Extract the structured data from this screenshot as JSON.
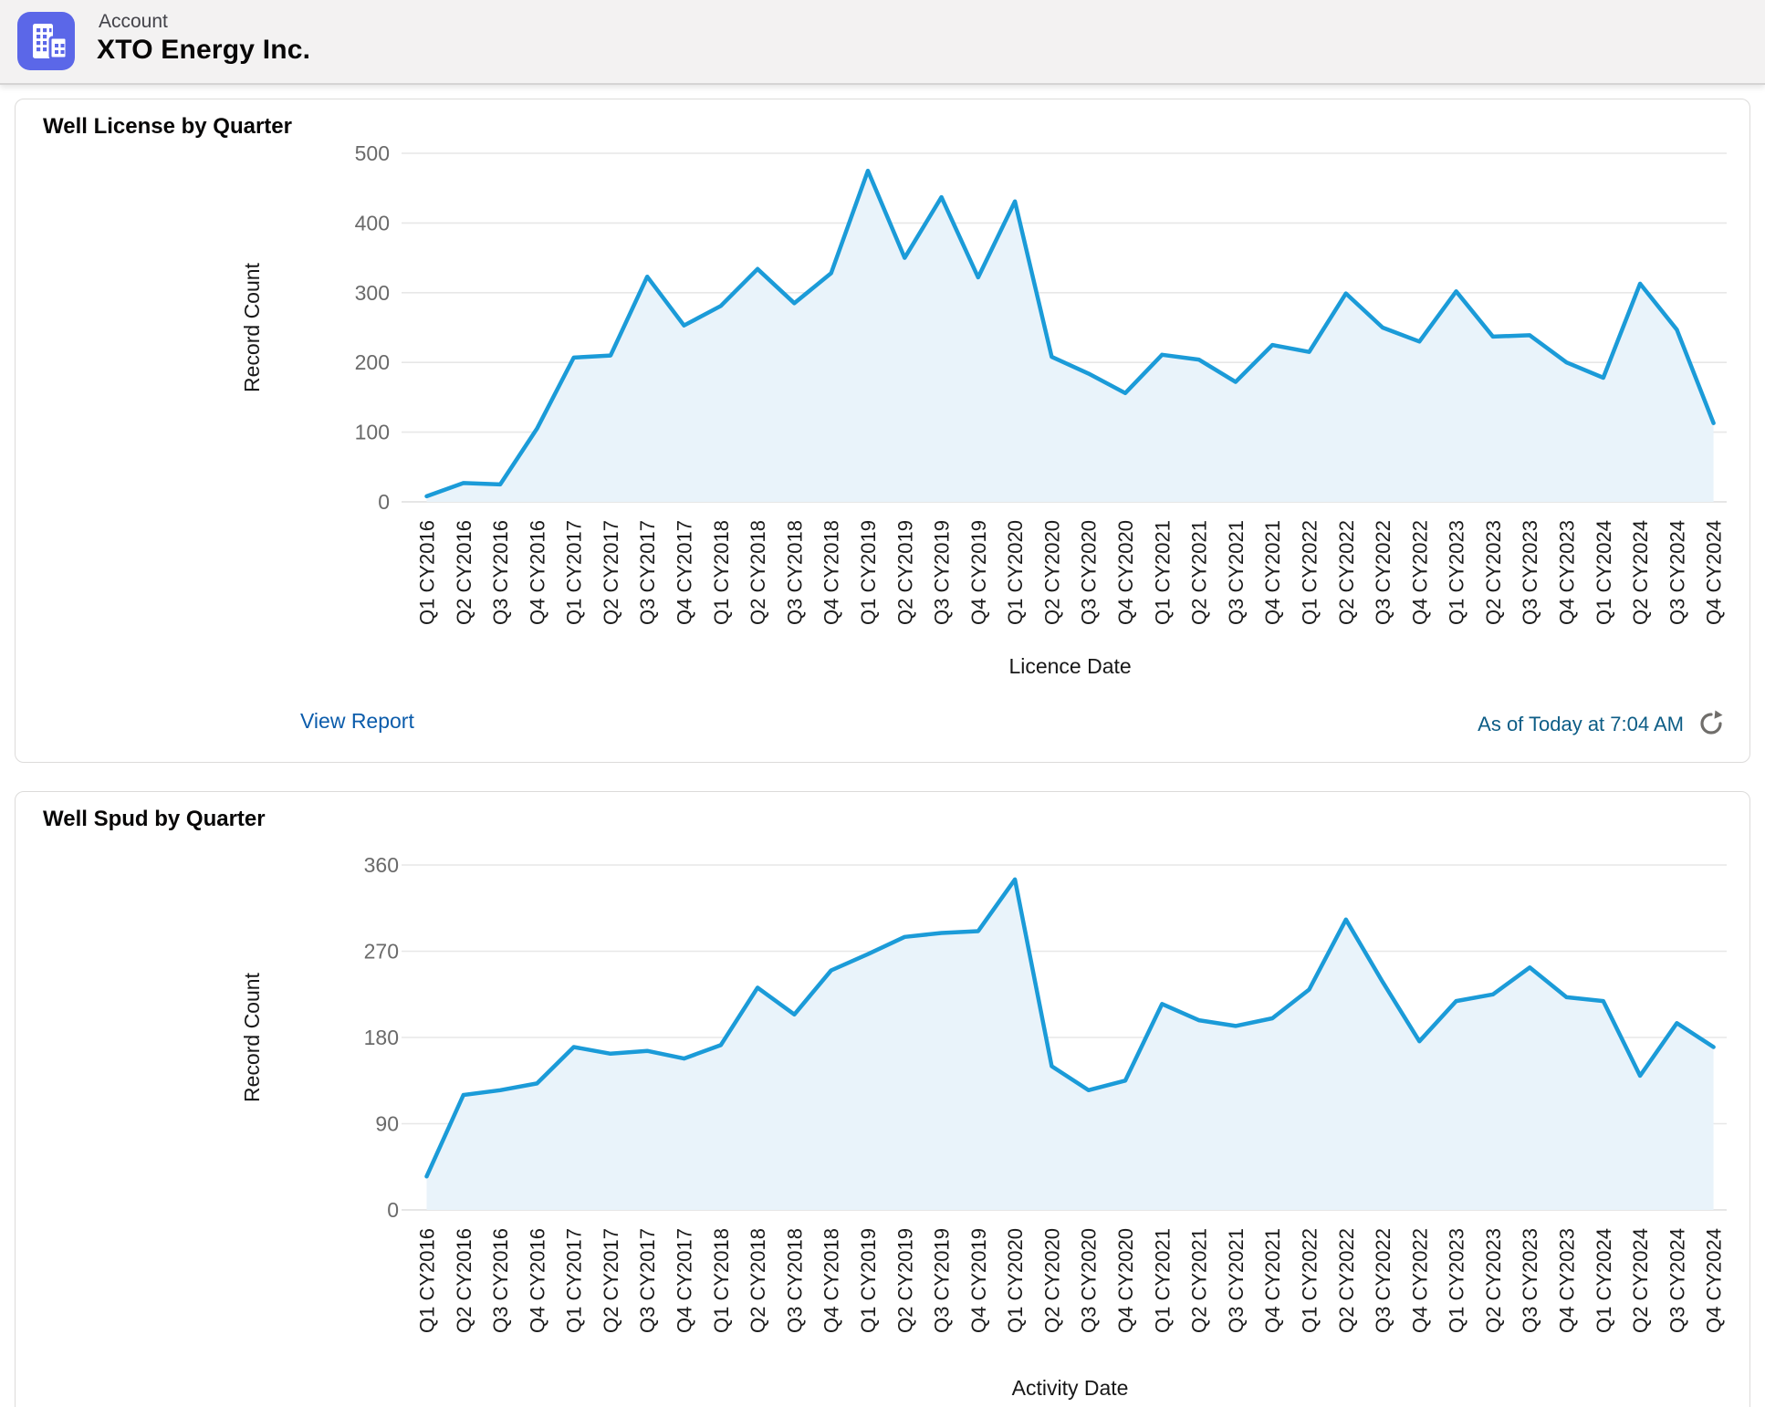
{
  "header": {
    "entity_label": "Account",
    "account_name": "XTO Energy Inc.",
    "icon": "account-building-icon"
  },
  "cards": [
    {
      "title": "Well License by Quarter",
      "footer_link": "View Report",
      "as_of_text": "As of Today at 7:04 AM",
      "refresh_icon": "refresh-icon"
    },
    {
      "title": "Well Spud by Quarter"
    }
  ],
  "chart_data": [
    {
      "type": "area",
      "title": "Well License by Quarter",
      "xlabel": "Licence Date",
      "ylabel": "Record Count",
      "ylim": [
        0,
        500
      ],
      "yticks": [
        0,
        100,
        200,
        300,
        400,
        500
      ],
      "grid": true,
      "legend": "none",
      "categories": [
        "Q1 CY2016",
        "Q2 CY2016",
        "Q3 CY2016",
        "Q4 CY2016",
        "Q1 CY2017",
        "Q2 CY2017",
        "Q3 CY2017",
        "Q4 CY2017",
        "Q1 CY2018",
        "Q2 CY2018",
        "Q3 CY2018",
        "Q4 CY2018",
        "Q1 CY2019",
        "Q2 CY2019",
        "Q3 CY2019",
        "Q4 CY2019",
        "Q1 CY2020",
        "Q2 CY2020",
        "Q3 CY2020",
        "Q4 CY2020",
        "Q1 CY2021",
        "Q2 CY2021",
        "Q3 CY2021",
        "Q4 CY2021",
        "Q1 CY2022",
        "Q2 CY2022",
        "Q3 CY2022",
        "Q4 CY2022",
        "Q1 CY2023",
        "Q2 CY2023",
        "Q3 CY2023",
        "Q4 CY2023",
        "Q1 CY2024",
        "Q2 CY2024",
        "Q3 CY2024",
        "Q4 CY2024"
      ],
      "values": [
        8,
        27,
        25,
        105,
        207,
        210,
        323,
        253,
        281,
        334,
        285,
        328,
        475,
        350,
        437,
        322,
        431,
        208,
        184,
        156,
        211,
        204,
        172,
        225,
        215,
        299,
        250,
        230,
        302,
        237,
        239,
        200,
        178,
        313,
        247,
        113
      ]
    },
    {
      "type": "area",
      "title": "Well Spud by Quarter",
      "xlabel": "Activity Date",
      "ylabel": "Record Count",
      "ylim": [
        0,
        360
      ],
      "yticks": [
        0,
        90,
        180,
        270,
        360
      ],
      "grid": true,
      "legend": "none",
      "categories": [
        "Q1 CY2016",
        "Q2 CY2016",
        "Q3 CY2016",
        "Q4 CY2016",
        "Q1 CY2017",
        "Q2 CY2017",
        "Q3 CY2017",
        "Q4 CY2017",
        "Q1 CY2018",
        "Q2 CY2018",
        "Q3 CY2018",
        "Q4 CY2018",
        "Q1 CY2019",
        "Q2 CY2019",
        "Q3 CY2019",
        "Q4 CY2019",
        "Q1 CY2020",
        "Q2 CY2020",
        "Q3 CY2020",
        "Q4 CY2020",
        "Q1 CY2021",
        "Q2 CY2021",
        "Q3 CY2021",
        "Q4 CY2021",
        "Q1 CY2022",
        "Q2 CY2022",
        "Q3 CY2022",
        "Q4 CY2022",
        "Q1 CY2023",
        "Q2 CY2023",
        "Q3 CY2023",
        "Q4 CY2023",
        "Q1 CY2024",
        "Q2 CY2024",
        "Q3 CY2024",
        "Q4 CY2024"
      ],
      "values": [
        35,
        120,
        125,
        132,
        170,
        163,
        166,
        158,
        172,
        232,
        204,
        250,
        267,
        285,
        289,
        291,
        345,
        150,
        125,
        135,
        215,
        198,
        192,
        200,
        230,
        303,
        238,
        176,
        218,
        225,
        253,
        222,
        218,
        140,
        195,
        170
      ]
    }
  ],
  "colors": {
    "accent_link": "#0b5cab",
    "as_of_text": "#0d5d86",
    "series_line": "#1b9bd8",
    "series_fill": "#e9f3fa",
    "icon_bg": "#5B67E8",
    "gridline": "#e7e7e7",
    "axis_number": "#6a6a6a",
    "tick_label": "#1b1b1b",
    "refresh_icon": "#706e6b"
  }
}
